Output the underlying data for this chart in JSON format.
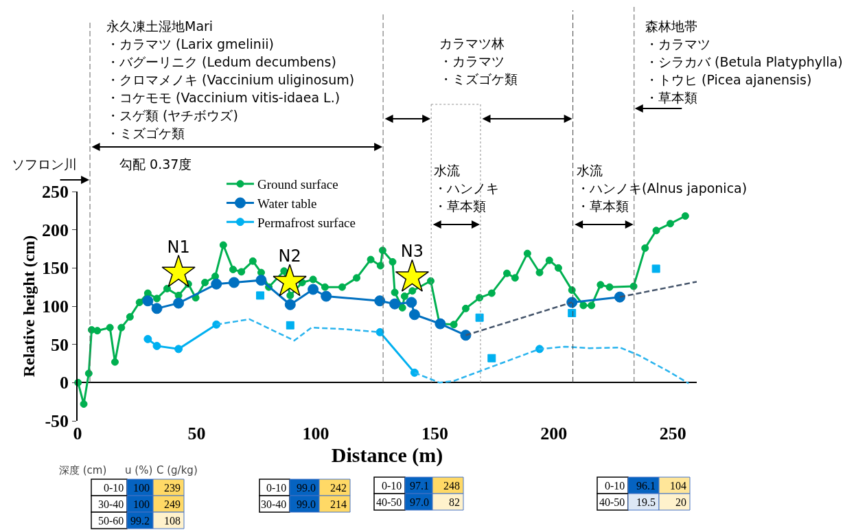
{
  "chart_data": {
    "type": "line",
    "xlabel": "Distance (m)",
    "ylabel": "Relative height (cm)",
    "xlim": [
      0,
      260
    ],
    "ylim": [
      -50,
      250
    ],
    "xticks": [
      0,
      50,
      100,
      150,
      200,
      250
    ],
    "yticks": [
      -50,
      0,
      50,
      100,
      150,
      200,
      250
    ],
    "legend": "top left",
    "marker": "circle",
    "line_style": "solid",
    "series": [
      {
        "name": "Ground surface",
        "color": "#00b050",
        "x": [
          0.2,
          2.6,
          4.7,
          5.9,
          8.3,
          13.6,
          15.7,
          18.4,
          22,
          26,
          29.5,
          33.3,
          37.6,
          42.4,
          46.5,
          49.6,
          53.5,
          57.8,
          61.2,
          65.3,
          68.8,
          73.6,
          77.1,
          80.3,
          86.7,
          89.3,
          94.3,
          98.9,
          103.9,
          111.1,
          117.2,
          123.1,
          127.2,
          128.1,
          132.3,
          133.2,
          136.4,
          137.3,
          140.6,
          148.3,
          152,
          158,
          163,
          168.8,
          173.9,
          180.3,
          183.7,
          188.9,
          194,
          198.1,
          201.9,
          207.6,
          212.4,
          215.8,
          219.6,
          223.4,
          233.5,
          238.3,
          243,
          248.9,
          255.2
        ],
        "values": [
          0,
          -28,
          12,
          69,
          68,
          72,
          27,
          72,
          86,
          105,
          117,
          110,
          123,
          114,
          129,
          111,
          131,
          139,
          180,
          148,
          145,
          159,
          144,
          125,
          146,
          114,
          131,
          135,
          125,
          125,
          137,
          161,
          153,
          173,
          158,
          118,
          98,
          113,
          120,
          133,
          77,
          76,
          97,
          111,
          117,
          143,
          137,
          169,
          144,
          160,
          150,
          121,
          101,
          101,
          128,
          125,
          126,
          176,
          199,
          208,
          218
        ]
      },
      {
        "name": "Water table",
        "color": "#0070c0",
        "x": [
          29.5,
          33.3,
          42.4,
          58.3,
          65.7,
          77.1,
          89.3,
          98.9,
          104.4,
          126.9,
          133.2,
          140.2,
          141.5,
          152.3,
          163,
          185,
          207.6,
          227.7
        ],
        "values": [
          107,
          97,
          104,
          129,
          131,
          134,
          102,
          122,
          113,
          107,
          103,
          105,
          89,
          77,
          62,
          null,
          105,
          112
        ]
      },
      {
        "name": "Permafrost surface",
        "color": "#00b0f0",
        "x": [
          29.5,
          33.3,
          42.4,
          58.3,
          90,
          127,
          141.5,
          170,
          194
        ],
        "values": [
          57,
          48,
          44,
          76,
          null,
          66,
          13,
          null,
          44
        ]
      },
      {
        "type": "line",
        "color": "#44546a",
        "line_style": "dashed",
        "marker": "none",
        "x": [
          163,
          207.6,
          217,
          227.7,
          260
        ],
        "values": [
          62,
          105,
          null,
          112,
          132
        ]
      },
      {
        "type": "line",
        "color": "#2ab4ee",
        "line_style": "dashed",
        "marker": "none",
        "x": [
          58.3,
          72.2,
          91,
          98.2,
          112,
          127
        ],
        "values": [
          76,
          83,
          55,
          72,
          70,
          66
        ]
      },
      {
        "type": "line",
        "color": "#2ab4ee",
        "line_style": "dashed",
        "marker": "none",
        "x": [
          141.5,
          152,
          157.8,
          175,
          194,
          204.6,
          215,
          227.7,
          235.5,
          248,
          256.6
        ],
        "values": [
          13,
          0,
          2,
          22,
          44,
          47,
          45,
          46,
          36,
          15,
          -1
        ]
      },
      {
        "type": "scatter",
        "color": "#00b0f0",
        "marker": "square",
        "x": [
          76.7,
          89.3,
          168.8,
          173.9,
          207.6,
          242.9
        ],
        "values": [
          114,
          75,
          85,
          32,
          91,
          149
        ]
      },
      {
        "type": "scatter",
        "color": "#ffff00",
        "marker": "star",
        "x": [
          42.4,
          89.1,
          140.5
        ],
        "values": [
          144,
          132,
          138
        ],
        "value_labels": [
          "N1",
          "N2",
          "N3"
        ]
      }
    ],
    "ref_lines": [
      {
        "axis": "x",
        "value": 5.2,
        "color": "#606060",
        "line_style": "dashed"
      },
      {
        "axis": "x",
        "value": 128.3,
        "color": "#606060",
        "line_style": "dashed"
      },
      {
        "axis": "x",
        "value": 148.5,
        "color": "#909090",
        "line_style": "dotted"
      },
      {
        "axis": "x",
        "value": 169.2,
        "color": "#909090",
        "line_style": "dotted"
      },
      {
        "axis": "x",
        "value": 208,
        "color": "#404040",
        "line_style": "dashed"
      },
      {
        "axis": "x",
        "value": 233.7,
        "color": "#606060",
        "line_style": "dashed"
      }
    ],
    "annotations": [
      "永久凍土湿地Mari",
      "・カラマツ (Larix gmelinii)",
      "・バグーリニク (Ledum decumbens)",
      "・クロマメノキ (Vaccinium uliginosum)",
      "・コケモモ (Vaccinium vitis-idaea L.)",
      "・スゲ類 (ヤチボウズ)",
      "・ミズゴケ類",
      "勾配 0.37度",
      "ソフロン川",
      "カラマツ林",
      "・カラマツ",
      "・ミズゴケ類",
      "森林地帯",
      "・カラマツ",
      "・シラカバ (Betula Platyphylla)",
      "・トウヒ (Picea ajanensis)",
      "・草本類",
      "水流",
      "・ハンノキ",
      "・草本類",
      "水流",
      "・ハンノキ(Alnus japonica)",
      "・草本類",
      "深度 (cm)",
      "u (%)",
      "C (g/kg)",
      "0-10",
      "100",
      "239",
      "30-40",
      "100",
      "249",
      "50-60",
      "99.2",
      "108",
      "0-10",
      "99.0",
      "242",
      "30-40",
      "99.0",
      "214",
      "0-10",
      "97.1",
      "248",
      "40-50",
      "97.0",
      "82",
      "0-10",
      "96.1",
      "104",
      "40-50",
      "19.5",
      "20"
    ]
  }
}
